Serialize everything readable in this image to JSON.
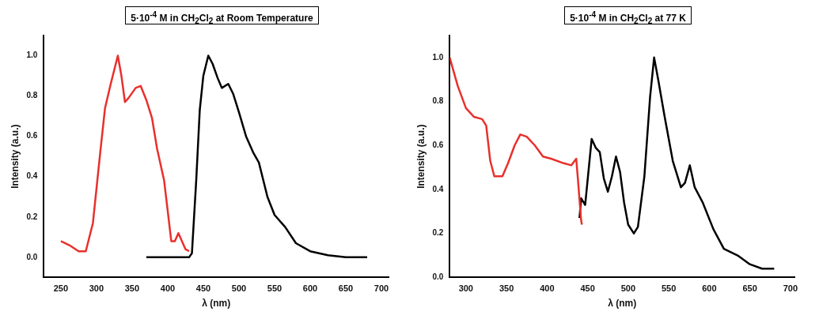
{
  "chart_data": [
    {
      "type": "line",
      "title": "5·10$^{-4}$ M in CH$_{2}$Cl$_{2}$ at Room Temperature",
      "xlabel": "λ (nm)",
      "ylabel": "Intensity (a.u.)",
      "xlim": [
        226,
        710
      ],
      "xticks": [
        250,
        300,
        350,
        400,
        450,
        500,
        550,
        600,
        650,
        700
      ],
      "ylim": [
        -0.1,
        1.1
      ],
      "yticks": [
        {
          "value": 0,
          "label": "0.0"
        },
        {
          "value": 0.2,
          "label": "0.2"
        },
        {
          "value": 0.4,
          "label": "0.4"
        },
        {
          "value": 0.6,
          "label": "0.6"
        },
        {
          "value": 0.8,
          "label": "0.8"
        },
        {
          "value": 1,
          "label": "1.0"
        }
      ],
      "grid": false,
      "legend": false,
      "series": [
        {
          "color": "#e8302c",
          "x": [
            250,
            262,
            275,
            285,
            295,
            305,
            312,
            320,
            330,
            335,
            340,
            345,
            355,
            362,
            370,
            378,
            385,
            395,
            400,
            405,
            410,
            415,
            420,
            425,
            430
          ],
          "values": [
            0.08,
            0.06,
            0.03,
            0.03,
            0.17,
            0.51,
            0.74,
            0.86,
            1.0,
            0.9,
            0.77,
            0.79,
            0.84,
            0.85,
            0.78,
            0.69,
            0.54,
            0.38,
            0.23,
            0.08,
            0.08,
            0.12,
            0.08,
            0.04,
            0.03
          ]
        },
        {
          "color": "#000000",
          "x": [
            370,
            430,
            434,
            440,
            445,
            450,
            457,
            463,
            470,
            476,
            485,
            492,
            500,
            510,
            520,
            528,
            540,
            550,
            565,
            580,
            600,
            625,
            650,
            680
          ],
          "values": [
            0.0,
            0.0,
            0.02,
            0.38,
            0.73,
            0.9,
            1.0,
            0.96,
            0.89,
            0.84,
            0.86,
            0.81,
            0.72,
            0.6,
            0.52,
            0.47,
            0.3,
            0.21,
            0.15,
            0.07,
            0.03,
            0.01,
            0.0,
            0.0
          ]
        }
      ]
    },
    {
      "type": "line",
      "title": "5·10$^{-4}$ M in CH$_{2}$Cl$_{2}$ at 77 K",
      "xlabel": "λ (nm)",
      "ylabel": "Intensity (a.u.)",
      "xlim": [
        280,
        705
      ],
      "xticks": [
        300,
        350,
        400,
        450,
        500,
        550,
        600,
        650,
        700
      ],
      "ylim": [
        0,
        1.1
      ],
      "yticks": [
        {
          "value": 0,
          "label": "0.0"
        },
        {
          "value": 0.2,
          "label": "0.2"
        },
        {
          "value": 0.4,
          "label": "0.4"
        },
        {
          "value": 0.6,
          "label": "0.6"
        },
        {
          "value": 0.8,
          "label": "0.8"
        },
        {
          "value": 1,
          "label": "1.0"
        }
      ],
      "grid": false,
      "legend": false,
      "series": [
        {
          "color": "#e8302c",
          "x": [
            280,
            290,
            300,
            310,
            320,
            325,
            330,
            335,
            345,
            352,
            360,
            367,
            375,
            385,
            395,
            405,
            420,
            430,
            436,
            438,
            442,
            443
          ],
          "values": [
            1.0,
            0.87,
            0.77,
            0.73,
            0.72,
            0.69,
            0.53,
            0.46,
            0.46,
            0.52,
            0.6,
            0.65,
            0.64,
            0.6,
            0.55,
            0.54,
            0.52,
            0.51,
            0.54,
            0.45,
            0.26,
            0.24
          ]
        },
        {
          "color": "#000000",
          "x": [
            440,
            442,
            447,
            455,
            460,
            465,
            470,
            475,
            480,
            485,
            490,
            495,
            500,
            507,
            512,
            520,
            527,
            532,
            537,
            545,
            555,
            565,
            570,
            576,
            582,
            592,
            605,
            618,
            635,
            650,
            665,
            680
          ],
          "values": [
            0.27,
            0.36,
            0.33,
            0.63,
            0.59,
            0.57,
            0.45,
            0.39,
            0.46,
            0.55,
            0.48,
            0.34,
            0.24,
            0.2,
            0.23,
            0.46,
            0.82,
            1.0,
            0.9,
            0.73,
            0.53,
            0.41,
            0.43,
            0.51,
            0.41,
            0.34,
            0.22,
            0.13,
            0.1,
            0.06,
            0.04,
            0.04
          ]
        }
      ]
    }
  ]
}
